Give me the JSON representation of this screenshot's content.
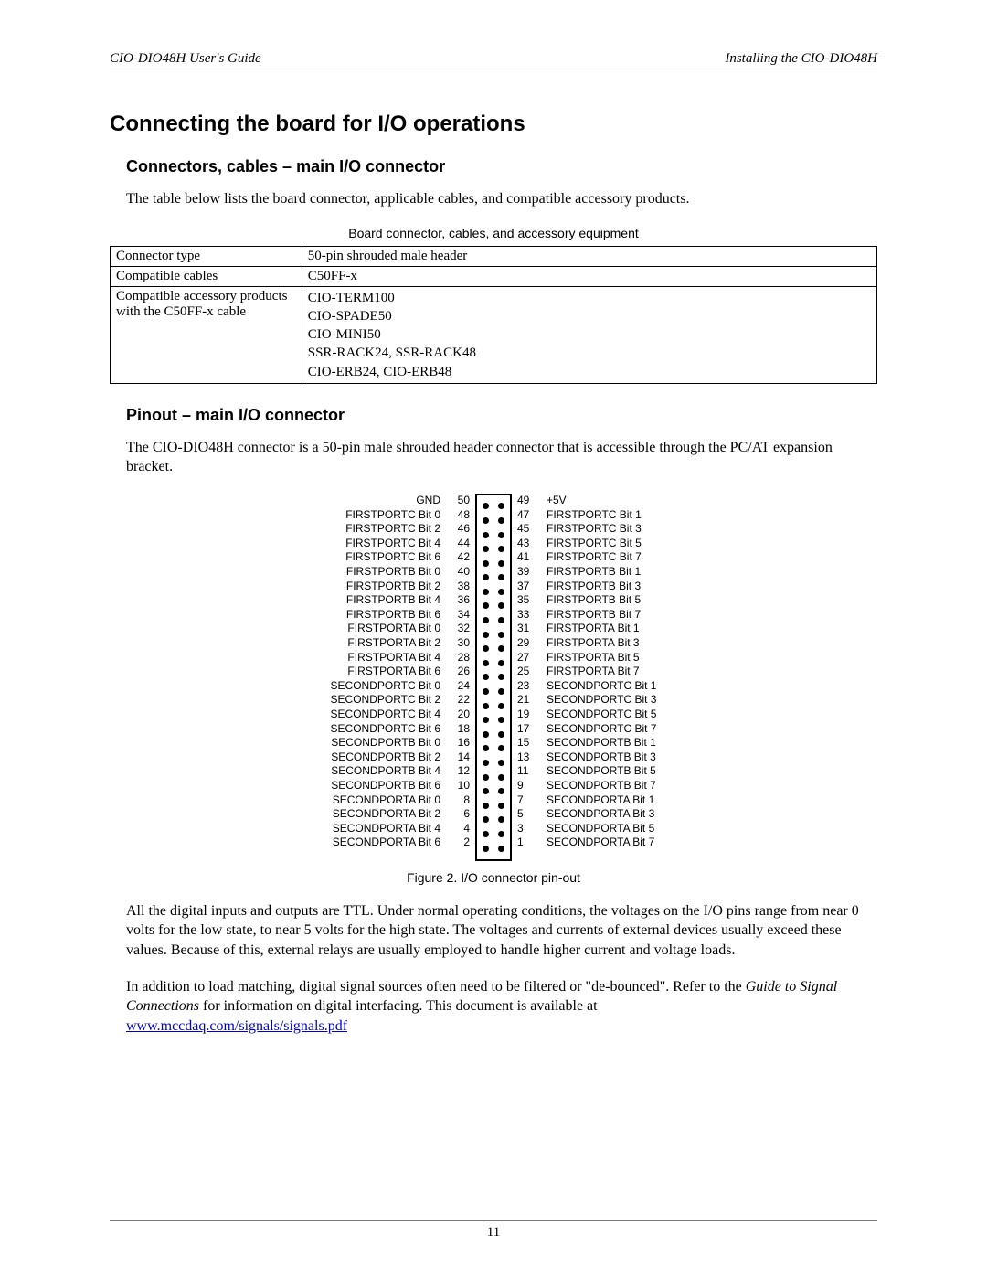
{
  "header": {
    "left": "CIO-DIO48H User's Guide",
    "right": "Installing the CIO-DIO48H"
  },
  "h1": "Connecting the board for I/O operations",
  "section1": {
    "title": "Connectors, cables – main I/O connector",
    "intro": "The table below lists the board connector, applicable cables, and compatible accessory products.",
    "table_caption": "Board connector, cables, and accessory equipment",
    "rows": [
      {
        "label": "Connector type",
        "value": "50-pin shrouded male header"
      },
      {
        "label": "Compatible cables",
        "value": "C50FF-x"
      },
      {
        "label": "Compatible accessory products with the C50FF-x cable",
        "values": [
          "CIO-TERM100",
          "CIO-SPADE50",
          "CIO-MINI50",
          "SSR-RACK24, SSR-RACK48",
          "CIO-ERB24, CIO-ERB48"
        ]
      }
    ]
  },
  "section2": {
    "title": "Pinout – main I/O connector",
    "intro": "The CIO-DIO48H connector is a 50-pin male shrouded header connector that is accessible through the PC/AT expansion bracket.",
    "figure_caption": "Figure 2. I/O connector pin-out",
    "left_pins": [
      {
        "n": 50,
        "l": "GND"
      },
      {
        "n": 48,
        "l": "FIRSTPORTC Bit 0"
      },
      {
        "n": 46,
        "l": "FIRSTPORTC Bit 2"
      },
      {
        "n": 44,
        "l": "FIRSTPORTC Bit 4"
      },
      {
        "n": 42,
        "l": "FIRSTPORTC Bit 6"
      },
      {
        "n": 40,
        "l": "FIRSTPORTB Bit 0"
      },
      {
        "n": 38,
        "l": "FIRSTPORTB Bit 2"
      },
      {
        "n": 36,
        "l": "FIRSTPORTB Bit 4"
      },
      {
        "n": 34,
        "l": "FIRSTPORTB Bit 6"
      },
      {
        "n": 32,
        "l": "FIRSTPORTA Bit 0"
      },
      {
        "n": 30,
        "l": "FIRSTPORTA Bit 2"
      },
      {
        "n": 28,
        "l": "FIRSTPORTA Bit 4"
      },
      {
        "n": 26,
        "l": "FIRSTPORTA Bit 6"
      },
      {
        "n": 24,
        "l": "SECONDPORTC Bit 0"
      },
      {
        "n": 22,
        "l": "SECONDPORTC Bit 2"
      },
      {
        "n": 20,
        "l": "SECONDPORTC Bit 4"
      },
      {
        "n": 18,
        "l": "SECONDPORTC Bit 6"
      },
      {
        "n": 16,
        "l": "SECONDPORTB Bit 0"
      },
      {
        "n": 14,
        "l": "SECONDPORTB Bit 2"
      },
      {
        "n": 12,
        "l": "SECONDPORTB Bit 4"
      },
      {
        "n": 10,
        "l": "SECONDPORTB Bit 6"
      },
      {
        "n": 8,
        "l": "SECONDPORTA Bit 0"
      },
      {
        "n": 6,
        "l": "SECONDPORTA Bit 2"
      },
      {
        "n": 4,
        "l": "SECONDPORTA Bit 4"
      },
      {
        "n": 2,
        "l": "SECONDPORTA Bit 6"
      }
    ],
    "right_pins": [
      {
        "n": 49,
        "l": "+5V"
      },
      {
        "n": 47,
        "l": "FIRSTPORTC Bit 1"
      },
      {
        "n": 45,
        "l": "FIRSTPORTC Bit 3"
      },
      {
        "n": 43,
        "l": "FIRSTPORTC Bit 5"
      },
      {
        "n": 41,
        "l": "FIRSTPORTC Bit 7"
      },
      {
        "n": 39,
        "l": "FIRSTPORTB Bit 1"
      },
      {
        "n": 37,
        "l": "FIRSTPORTB Bit 3"
      },
      {
        "n": 35,
        "l": "FIRSTPORTB Bit 5"
      },
      {
        "n": 33,
        "l": "FIRSTPORTB Bit 7"
      },
      {
        "n": 31,
        "l": "FIRSTPORTA Bit 1"
      },
      {
        "n": 29,
        "l": "FIRSTPORTA Bit 3"
      },
      {
        "n": 27,
        "l": "FIRSTPORTA Bit 5"
      },
      {
        "n": 25,
        "l": "FIRSTPORTA Bit 7"
      },
      {
        "n": 23,
        "l": "SECONDPORTC Bit 1"
      },
      {
        "n": 21,
        "l": "SECONDPORTC Bit 3"
      },
      {
        "n": 19,
        "l": "SECONDPORTC Bit 5"
      },
      {
        "n": 17,
        "l": "SECONDPORTC Bit 7"
      },
      {
        "n": 15,
        "l": "SECONDPORTB Bit 1"
      },
      {
        "n": 13,
        "l": "SECONDPORTB Bit 3"
      },
      {
        "n": 11,
        "l": "SECONDPORTB Bit 5"
      },
      {
        "n": 9,
        "l": "SECONDPORTB Bit 7"
      },
      {
        "n": 7,
        "l": "SECONDPORTA Bit 1"
      },
      {
        "n": 5,
        "l": "SECONDPORTA Bit 3"
      },
      {
        "n": 3,
        "l": "SECONDPORTA Bit 5"
      },
      {
        "n": 1,
        "l": "SECONDPORTA Bit 7"
      }
    ],
    "para2_a": "All the digital inputs and outputs are TTL. Under normal operating conditions, the voltages on the I/O pins range from near 0 volts for the low state, to near 5 volts for the high state. The voltages and currents of external devices usually exceed these values. Because of this, external relays are usually employed to handle higher current and voltage loads.",
    "para3_a": "In addition to load matching, digital signal sources often need to be filtered or \"de-bounced\". Refer to the ",
    "para3_ital": "Guide to Signal Connections",
    "para3_b": " for information on digital interfacing. This document is available at ",
    "link": "www.mccdaq.com/signals/signals.pdf"
  },
  "page_number": "11"
}
